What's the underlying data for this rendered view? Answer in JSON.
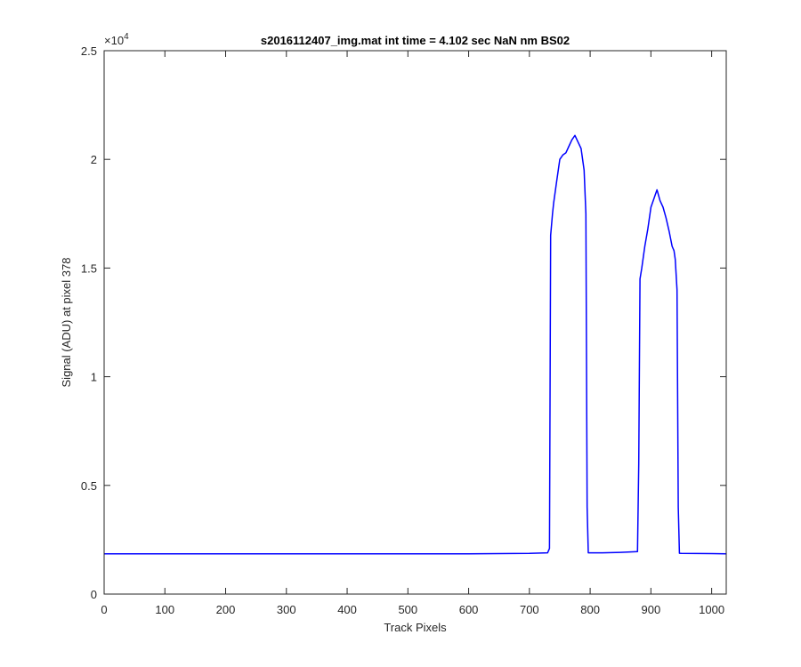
{
  "chart_data": {
    "type": "line",
    "title": "s2016112407_img.mat int time = 4.102 sec  NaN nm BS02",
    "xlabel": "Track Pixels",
    "ylabel": "Signal (ADU) at pixel 378",
    "xlim": [
      0,
      1024
    ],
    "ylim": [
      0,
      25000
    ],
    "y_exponent_label": {
      "base": "×10",
      "exponent": "4"
    },
    "x_ticks": [
      0,
      100,
      200,
      300,
      400,
      500,
      600,
      700,
      800,
      900,
      1000
    ],
    "x_tick_labels": [
      "0",
      "100",
      "200",
      "300",
      "400",
      "500",
      "600",
      "700",
      "800",
      "900",
      "1000"
    ],
    "y_ticks": [
      0,
      5000,
      10000,
      15000,
      20000,
      25000
    ],
    "y_tick_labels": [
      "0",
      "0.5",
      "1",
      "1.5",
      "2",
      "2.5"
    ],
    "grid": false,
    "legend": "none",
    "series": [
      {
        "color": "#0000ff",
        "x": [
          0,
          100,
          200,
          300,
          400,
          500,
          600,
          700,
          730,
          733,
          735,
          738,
          740,
          745,
          750,
          755,
          760,
          765,
          770,
          775,
          780,
          785,
          790,
          793,
          795,
          797,
          800,
          820,
          850,
          878,
          880,
          882,
          885,
          890,
          895,
          900,
          905,
          910,
          915,
          920,
          925,
          930,
          935,
          938,
          940,
          943,
          945,
          947,
          950,
          1000,
          1024
        ],
        "y": [
          1850,
          1850,
          1850,
          1850,
          1850,
          1850,
          1850,
          1870,
          1900,
          2100,
          16500,
          17500,
          18000,
          19000,
          20000,
          20200,
          20300,
          20600,
          20900,
          21100,
          20800,
          20500,
          19500,
          17500,
          4000,
          1900,
          1900,
          1900,
          1920,
          1950,
          6000,
          14500,
          15000,
          16000,
          16800,
          17800,
          18200,
          18600,
          18100,
          17800,
          17300,
          16700,
          16000,
          15800,
          15400,
          14000,
          4000,
          1880,
          1870,
          1860,
          1850
        ]
      }
    ]
  }
}
